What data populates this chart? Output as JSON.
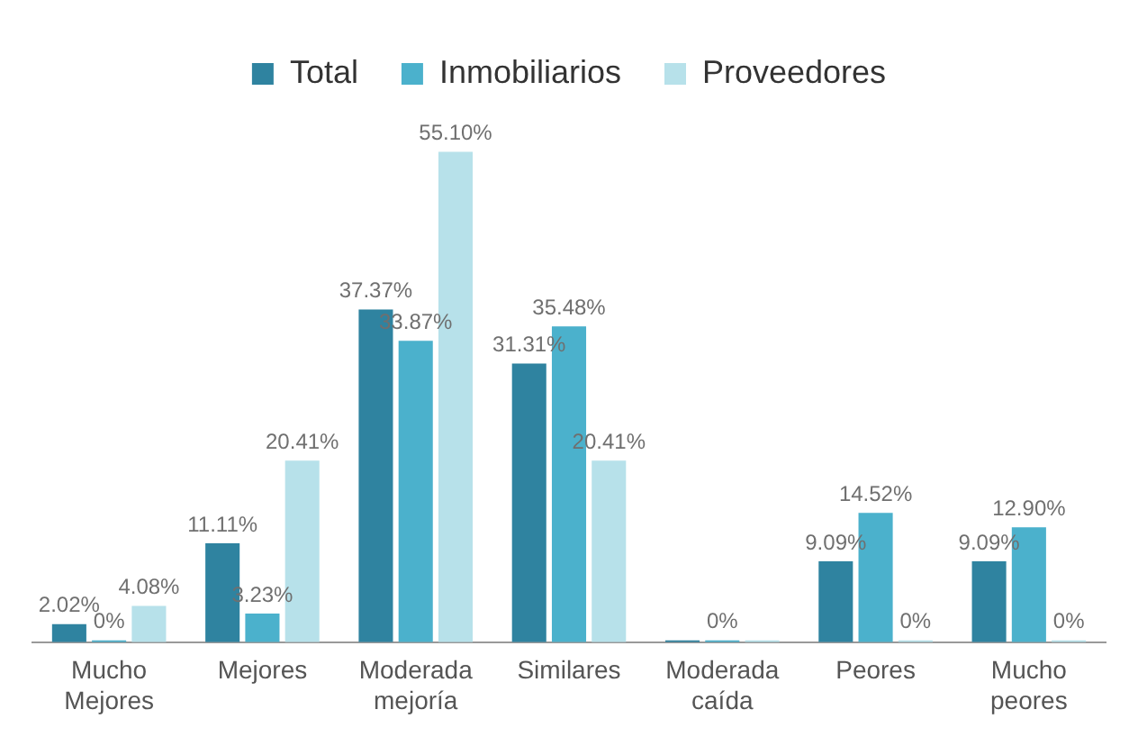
{
  "chart_data": {
    "type": "bar",
    "categories": [
      "Mucho Mejores",
      "Mejores",
      "Moderada mejoría",
      "Similares",
      "Moderada caída",
      "Peores",
      "Mucho peores"
    ],
    "series": [
      {
        "name": "Total",
        "color": "#2f83a0",
        "values": [
          2.02,
          11.11,
          37.37,
          31.31,
          0,
          9.09,
          9.09
        ],
        "value_labels": [
          "2.02%",
          "11.11%",
          "37.37%",
          "31.31%",
          null,
          "9.09%",
          "9.09%"
        ]
      },
      {
        "name": "Inmobiliarios",
        "color": "#4bb1cc",
        "values": [
          0,
          3.23,
          33.87,
          35.48,
          0,
          14.52,
          12.9
        ],
        "value_labels": [
          "0%",
          "3.23%",
          "33.87%",
          "35.48%",
          "0%",
          "14.52%",
          "12.90%"
        ]
      },
      {
        "name": "Proveedores",
        "color": "#b7e1ea",
        "values": [
          4.08,
          20.41,
          55.1,
          20.41,
          0,
          0,
          0
        ],
        "value_labels": [
          "4.08%",
          "20.41%",
          "55.10%",
          "20.41%",
          null,
          "0%",
          "0%"
        ]
      }
    ],
    "legend": "top",
    "grid": false
  }
}
